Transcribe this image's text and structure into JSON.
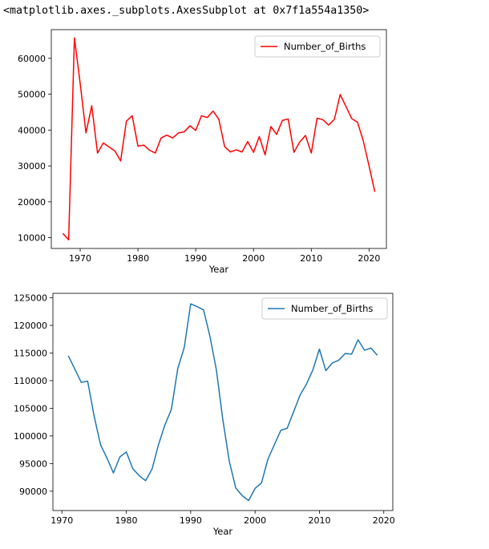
{
  "output_repr": "<matplotlib.axes._subplots.AxesSubplot at 0x7f1a554a1350>",
  "chart_data": [
    {
      "type": "line",
      "xlabel": "Year",
      "ylabel": "",
      "xlim": [
        1965,
        2023
      ],
      "ylim": [
        7000,
        68000
      ],
      "xticks": [
        "1970",
        "1980",
        "1990",
        "2000",
        "2010",
        "2020"
      ],
      "yticks": [
        "10000",
        "20000",
        "30000",
        "40000",
        "50000",
        "60000"
      ],
      "legend_position": "top-right",
      "grid": false,
      "series": [
        {
          "name": "Number_of_Births",
          "color": "#ff0000",
          "x": [
            1967,
            1968,
            1969,
            1970,
            1971,
            1972,
            1973,
            1974,
            1975,
            1976,
            1977,
            1978,
            1979,
            1980,
            1981,
            1982,
            1983,
            1984,
            1985,
            1986,
            1987,
            1988,
            1989,
            1990,
            1991,
            1992,
            1993,
            1994,
            1995,
            1996,
            1997,
            1998,
            1999,
            2000,
            2001,
            2002,
            2003,
            2004,
            2005,
            2006,
            2007,
            2008,
            2009,
            2010,
            2011,
            2012,
            2013,
            2014,
            2015,
            2016,
            2017,
            2018,
            2019,
            2020,
            2021
          ],
          "y": [
            11200,
            9400,
            65700,
            53000,
            39200,
            46800,
            33600,
            36400,
            35300,
            34200,
            31400,
            42500,
            44000,
            35500,
            35800,
            34400,
            33600,
            37800,
            38600,
            37800,
            39200,
            39500,
            41200,
            39900,
            44000,
            43500,
            45300,
            43000,
            35400,
            33900,
            34500,
            33900,
            36800,
            33800,
            38200,
            33100,
            41000,
            38800,
            42700,
            43100,
            33800,
            36700,
            38500,
            33600,
            43300,
            42900,
            41400,
            43000,
            49900,
            46600,
            43200,
            42200,
            37000,
            30000,
            22800
          ]
        }
      ]
    },
    {
      "type": "line",
      "xlabel": "Year",
      "ylabel": "",
      "xlim": [
        1968.6,
        2021.4
      ],
      "ylim": [
        86500,
        125800
      ],
      "xticks": [
        "1970",
        "1980",
        "1990",
        "2000",
        "2010",
        "2020"
      ],
      "yticks": [
        "90000",
        "95000",
        "100000",
        "105000",
        "110000",
        "115000",
        "120000",
        "125000"
      ],
      "legend_position": "top-right",
      "grid": false,
      "series": [
        {
          "name": "Number_of_Births",
          "color": "#1f77b4",
          "x": [
            1971,
            1972,
            1973,
            1974,
            1975,
            1976,
            1977,
            1978,
            1979,
            1980,
            1981,
            1982,
            1983,
            1984,
            1985,
            1986,
            1987,
            1988,
            1989,
            1990,
            1991,
            1992,
            1993,
            1994,
            1995,
            1996,
            1997,
            1998,
            1999,
            2000,
            2001,
            2002,
            2003,
            2004,
            2005,
            2006,
            2007,
            2008,
            2009,
            2010,
            2011,
            2012,
            2013,
            2014,
            2015,
            2016,
            2017,
            2018,
            2019
          ],
          "y": [
            114500,
            112100,
            109700,
            109900,
            103600,
            98400,
            96000,
            93300,
            96200,
            97100,
            94100,
            92800,
            91900,
            94000,
            98400,
            102000,
            104800,
            112200,
            116000,
            123900,
            123400,
            122800,
            118000,
            111900,
            102900,
            95400,
            90600,
            89200,
            88300,
            90500,
            91500,
            95800,
            98400,
            101000,
            101400,
            104400,
            107400,
            109400,
            112000,
            115700,
            111800,
            113200,
            113700,
            114900,
            114800,
            117400,
            115500,
            115900,
            114600
          ]
        }
      ]
    }
  ]
}
